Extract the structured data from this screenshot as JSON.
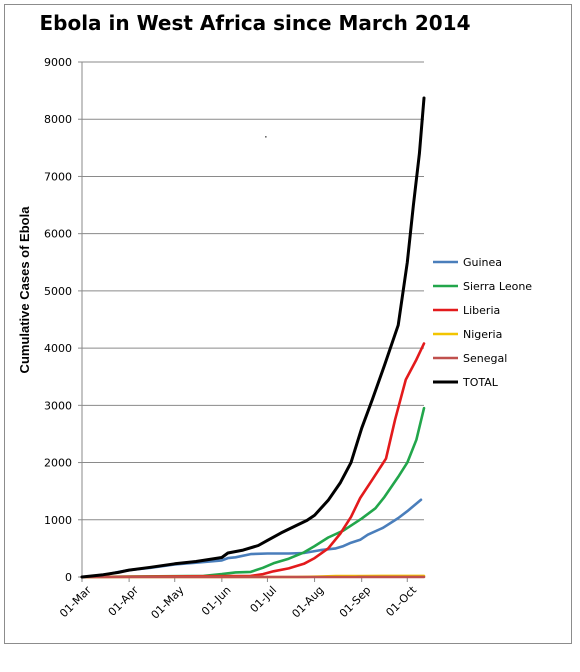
{
  "chart_data": {
    "type": "line",
    "title": "Ebola in West Africa since March 2014",
    "xlabel": "",
    "ylabel": "Cumulative Cases of Ebola",
    "ylim": [
      0,
      9000
    ],
    "yticks": [
      "0",
      "1000",
      "2000",
      "3000",
      "4000",
      "5000",
      "6000",
      "7000",
      "8000",
      "9000"
    ],
    "xlim": [
      "2014-03-01",
      "2014-10-12"
    ],
    "xticks": [
      {
        "date": "2014-03-01",
        "label": "01-Mar"
      },
      {
        "date": "2014-04-01",
        "label": "01-Apr"
      },
      {
        "date": "2014-05-01",
        "label": "01-May"
      },
      {
        "date": "2014-06-01",
        "label": "01-Jun"
      },
      {
        "date": "2014-07-01",
        "label": "01-Jul"
      },
      {
        "date": "2014-08-01",
        "label": "01-Aug"
      },
      {
        "date": "2014-09-01",
        "label": "01-Sep"
      },
      {
        "date": "2014-10-01",
        "label": "01-Oct"
      }
    ],
    "grid": "horizontal",
    "legend_position": "right",
    "series": [
      {
        "name": "Guinea",
        "color": "#4a7ebb",
        "points": [
          [
            "2014-03-01",
            0
          ],
          [
            "2014-03-15",
            30
          ],
          [
            "2014-03-25",
            90
          ],
          [
            "2014-04-01",
            120
          ],
          [
            "2014-04-15",
            160
          ],
          [
            "2014-05-01",
            220
          ],
          [
            "2014-05-15",
            250
          ],
          [
            "2014-06-01",
            290
          ],
          [
            "2014-06-05",
            330
          ],
          [
            "2014-06-10",
            345
          ],
          [
            "2014-06-20",
            400
          ],
          [
            "2014-07-01",
            410
          ],
          [
            "2014-07-15",
            410
          ],
          [
            "2014-07-25",
            420
          ],
          [
            "2014-08-05",
            470
          ],
          [
            "2014-08-15",
            500
          ],
          [
            "2014-08-20",
            540
          ],
          [
            "2014-08-25",
            600
          ],
          [
            "2014-08-31",
            650
          ],
          [
            "2014-09-05",
            740
          ],
          [
            "2014-09-15",
            860
          ],
          [
            "2014-09-25",
            1030
          ],
          [
            "2014-10-01",
            1150
          ],
          [
            "2014-10-10",
            1350
          ]
        ]
      },
      {
        "name": "Sierra Leone",
        "color": "#22a64b",
        "points": [
          [
            "2014-03-01",
            0
          ],
          [
            "2014-05-20",
            20
          ],
          [
            "2014-06-01",
            50
          ],
          [
            "2014-06-10",
            80
          ],
          [
            "2014-06-20",
            90
          ],
          [
            "2014-06-28",
            160
          ],
          [
            "2014-07-05",
            240
          ],
          [
            "2014-07-15",
            320
          ],
          [
            "2014-07-25",
            430
          ],
          [
            "2014-08-01",
            540
          ],
          [
            "2014-08-10",
            690
          ],
          [
            "2014-08-20",
            810
          ],
          [
            "2014-09-01",
            1020
          ],
          [
            "2014-09-10",
            1200
          ],
          [
            "2014-09-16",
            1400
          ],
          [
            "2014-09-25",
            1750
          ],
          [
            "2014-10-01",
            2000
          ],
          [
            "2014-10-07",
            2400
          ],
          [
            "2014-10-12",
            2950
          ]
        ]
      },
      {
        "name": "Liberia",
        "color": "#e31a1c",
        "points": [
          [
            "2014-03-01",
            0
          ],
          [
            "2014-06-20",
            20
          ],
          [
            "2014-06-28",
            50
          ],
          [
            "2014-07-05",
            100
          ],
          [
            "2014-07-15",
            150
          ],
          [
            "2014-07-25",
            230
          ],
          [
            "2014-08-01",
            330
          ],
          [
            "2014-08-10",
            500
          ],
          [
            "2014-08-18",
            760
          ],
          [
            "2014-08-25",
            1050
          ],
          [
            "2014-08-31",
            1380
          ],
          [
            "2014-09-08",
            1700
          ],
          [
            "2014-09-17",
            2070
          ],
          [
            "2014-09-23",
            2750
          ],
          [
            "2014-09-30",
            3450
          ],
          [
            "2014-10-07",
            3800
          ],
          [
            "2014-10-12",
            4080
          ]
        ]
      },
      {
        "name": "Nigeria",
        "color": "#f2c500",
        "points": [
          [
            "2014-03-01",
            0
          ],
          [
            "2014-07-20",
            0
          ],
          [
            "2014-07-25",
            1
          ],
          [
            "2014-08-05",
            8
          ],
          [
            "2014-08-15",
            15
          ],
          [
            "2014-09-01",
            18
          ],
          [
            "2014-09-15",
            20
          ],
          [
            "2014-10-12",
            20
          ]
        ]
      },
      {
        "name": "Senegal",
        "color": "#c0504d",
        "points": [
          [
            "2014-03-01",
            0
          ],
          [
            "2014-08-28",
            0
          ],
          [
            "2014-08-30",
            1
          ],
          [
            "2014-10-12",
            1
          ]
        ]
      },
      {
        "name": "TOTAL",
        "color": "#000000",
        "points": [
          [
            "2014-03-01",
            0
          ],
          [
            "2014-03-15",
            40
          ],
          [
            "2014-03-25",
            80
          ],
          [
            "2014-04-01",
            120
          ],
          [
            "2014-04-15",
            170
          ],
          [
            "2014-05-01",
            230
          ],
          [
            "2014-05-15",
            270
          ],
          [
            "2014-06-01",
            340
          ],
          [
            "2014-06-05",
            420
          ],
          [
            "2014-06-15",
            470
          ],
          [
            "2014-06-25",
            550
          ],
          [
            "2014-07-01",
            640
          ],
          [
            "2014-07-10",
            770
          ],
          [
            "2014-07-20",
            900
          ],
          [
            "2014-07-27",
            990
          ],
          [
            "2014-08-01",
            1080
          ],
          [
            "2014-08-10",
            1340
          ],
          [
            "2014-08-18",
            1650
          ],
          [
            "2014-08-25",
            2000
          ],
          [
            "2014-09-01",
            2600
          ],
          [
            "2014-09-08",
            3100
          ],
          [
            "2014-09-16",
            3700
          ],
          [
            "2014-09-25",
            4400
          ],
          [
            "2014-10-01",
            5500
          ],
          [
            "2014-10-05",
            6500
          ],
          [
            "2014-10-09",
            7400
          ],
          [
            "2014-10-12",
            8370
          ]
        ]
      }
    ],
    "annotations": [
      {
        "text": "·",
        "date": "2014-06-30",
        "value": 7630
      }
    ]
  }
}
